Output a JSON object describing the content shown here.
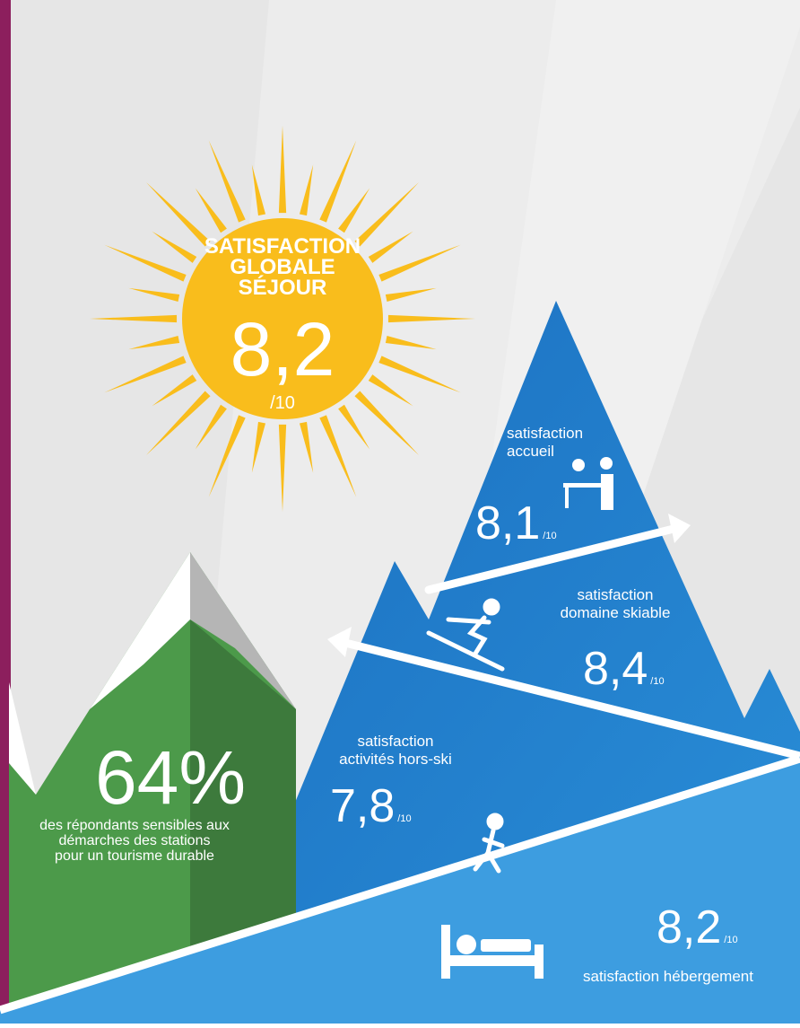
{
  "sun": {
    "title_lines": [
      "SATISFACTION",
      "GLOBALE",
      "SÉJOUR"
    ],
    "score": "8,2",
    "scale": "/10"
  },
  "scores": [
    {
      "label_lines": [
        "satisfaction",
        "accueil"
      ],
      "score": "8,1",
      "scale": "/10"
    },
    {
      "label_lines": [
        "satisfaction",
        "domaine skiable"
      ],
      "score": "8,4",
      "scale": "/10"
    },
    {
      "label_lines": [
        "satisfaction",
        "activités hors-ski"
      ],
      "score": "7,8",
      "scale": "/10"
    },
    {
      "label_lines": [
        "satisfaction hébergement"
      ],
      "score": "8,2",
      "scale": "/10"
    }
  ],
  "stat": {
    "value": "64%",
    "lines": [
      "des répondants sensibles aux",
      "démarches des stations",
      "pour un tourisme durable"
    ]
  }
}
